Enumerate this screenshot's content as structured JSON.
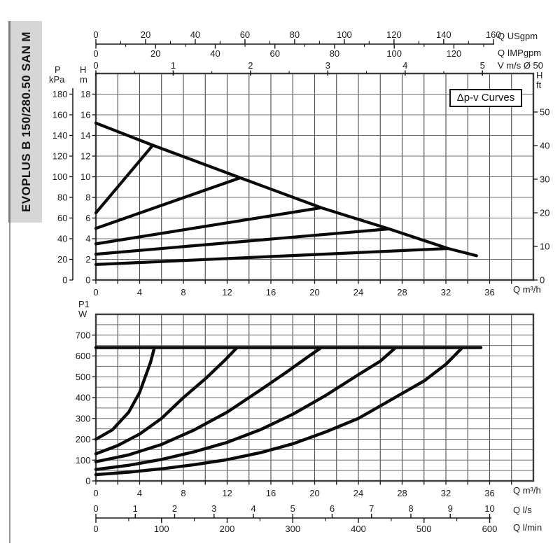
{
  "sidebar": {
    "model": "EVOPLUS B 150/280.50 SAN M"
  },
  "head_chart": {
    "annotation": "Δp-v Curves",
    "pressure_axis": {
      "symbol": "P",
      "unit": "kPa"
    },
    "head_axis_metric": {
      "symbol": "H",
      "unit": "m"
    },
    "head_axis_imperial": {
      "symbol": "H",
      "unit": "ft"
    },
    "top_axis_1_unit": "Q USgpm",
    "top_axis_2_unit": "Q IMPgpm",
    "top_axis_3_unit": "V m/s Ø 50",
    "bottom_axis_unit": "Q m³/h"
  },
  "power_chart": {
    "power_axis": {
      "symbol": "P1",
      "unit": "W"
    },
    "bottom_axis_1_unit": "Q m³/h",
    "bottom_axis_2_unit": "Q l/s",
    "bottom_axis_3_unit": "Q l/min"
  },
  "chart_data": [
    {
      "id": "head-flow-chart",
      "type": "line",
      "title": "Δp-v Curves",
      "x_unit": "Q m³/h",
      "x_range": [
        0,
        40
      ],
      "x_grid_step": 2,
      "x_tick_labels_m3h": [
        0,
        4,
        8,
        12,
        16,
        20,
        24,
        28,
        32,
        36
      ],
      "y_unit": "H m",
      "y_range_m": [
        0,
        20
      ],
      "y_grid_step_m": 2,
      "y_tick_labels_m": [
        18,
        16,
        14,
        12,
        10,
        8,
        6,
        4,
        2,
        0
      ],
      "y_tick_labels_kpa": [
        180,
        160,
        140,
        120,
        100,
        80,
        60,
        40,
        20,
        0
      ],
      "y_tick_labels_ft": [
        50,
        40,
        30,
        20,
        10,
        0
      ],
      "top_tick_labels_usgpm": [
        0,
        20,
        40,
        60,
        80,
        100,
        120,
        140,
        160
      ],
      "top_tick_labels_impgpm": [
        0,
        20,
        40,
        60,
        80,
        100,
        120
      ],
      "top_tick_labels_v_ms": [
        0,
        1,
        2,
        3,
        4,
        5
      ],
      "grid": true,
      "legend": false,
      "series": [
        {
          "name": "max-speed-limit-curve",
          "points": [
            [
              0,
              15.2
            ],
            [
              5.2,
              13.05
            ],
            [
              13.2,
              9.9
            ],
            [
              20.6,
              7.0
            ],
            [
              26.8,
              4.95
            ],
            [
              32.2,
              3.05
            ],
            [
              34.8,
              2.35
            ]
          ]
        },
        {
          "name": "dpv-setpoint-13m",
          "points": [
            [
              0,
              6.5
            ],
            [
              5.2,
              13.05
            ]
          ]
        },
        {
          "name": "dpv-setpoint-10m",
          "points": [
            [
              0,
              5.0
            ],
            [
              13.2,
              9.9
            ]
          ]
        },
        {
          "name": "dpv-setpoint-7m",
          "points": [
            [
              0,
              3.5
            ],
            [
              20.6,
              7.0
            ]
          ]
        },
        {
          "name": "dpv-setpoint-5m",
          "points": [
            [
              0,
              2.5
            ],
            [
              26.8,
              4.95
            ]
          ]
        },
        {
          "name": "dpv-setpoint-3m",
          "points": [
            [
              0,
              1.5
            ],
            [
              32.2,
              3.05
            ]
          ]
        }
      ]
    },
    {
      "id": "power-flow-chart",
      "type": "line",
      "title": "P1 W",
      "x_unit": "Q m³/h",
      "x_range": [
        0,
        40
      ],
      "x_grid_step": 2,
      "x_tick_labels_m3h": [
        0,
        4,
        8,
        12,
        16,
        20,
        24,
        28,
        32,
        36
      ],
      "x_tick_labels_ls": [
        0,
        1,
        2,
        3,
        4,
        5,
        6,
        7,
        8,
        9,
        10
      ],
      "x_tick_labels_lmin": [
        0,
        100,
        200,
        300,
        400,
        500,
        600
      ],
      "y_unit": "P1 W",
      "y_range_w": [
        0,
        800
      ],
      "y_grid_step_w": 50,
      "y_tick_labels_w": [
        700,
        600,
        500,
        400,
        300,
        200,
        100,
        0
      ],
      "grid": true,
      "legend": false,
      "series": [
        {
          "name": "p1-max-limit-640w",
          "points": [
            [
              0,
              640
            ],
            [
              35.2,
              640
            ]
          ]
        },
        {
          "name": "p1-dpv-13m",
          "points": [
            [
              0,
              200
            ],
            [
              1.5,
              245
            ],
            [
              3,
              330
            ],
            [
              4,
              425
            ],
            [
              5,
              570
            ],
            [
              5.35,
              640
            ]
          ]
        },
        {
          "name": "p1-dpv-10m",
          "points": [
            [
              0,
              130
            ],
            [
              2,
              170
            ],
            [
              4,
              225
            ],
            [
              6,
              300
            ],
            [
              8,
              400
            ],
            [
              10,
              490
            ],
            [
              11.8,
              580
            ],
            [
              12.9,
              640
            ]
          ]
        },
        {
          "name": "p1-dpv-7m",
          "points": [
            [
              0,
              92
            ],
            [
              3,
              125
            ],
            [
              6,
              175
            ],
            [
              9,
              245
            ],
            [
              12,
              330
            ],
            [
              15,
              435
            ],
            [
              17.5,
              525
            ],
            [
              19.5,
              600
            ],
            [
              20.6,
              640
            ]
          ]
        },
        {
          "name": "p1-dpv-5m",
          "points": [
            [
              0,
              55
            ],
            [
              3,
              75
            ],
            [
              6,
              103
            ],
            [
              9,
              140
            ],
            [
              12,
              185
            ],
            [
              15,
              245
            ],
            [
              18,
              320
            ],
            [
              21,
              410
            ],
            [
              24,
              510
            ],
            [
              26,
              575
            ],
            [
              27.4,
              640
            ]
          ]
        },
        {
          "name": "p1-dpv-3m",
          "points": [
            [
              0,
              30
            ],
            [
              3,
              42
            ],
            [
              6,
              58
            ],
            [
              9,
              78
            ],
            [
              12,
              102
            ],
            [
              15,
              135
            ],
            [
              18,
              178
            ],
            [
              21,
              235
            ],
            [
              24,
              300
            ],
            [
              27,
              390
            ],
            [
              30,
              480
            ],
            [
              32,
              560
            ],
            [
              33.5,
              640
            ]
          ]
        }
      ]
    }
  ]
}
